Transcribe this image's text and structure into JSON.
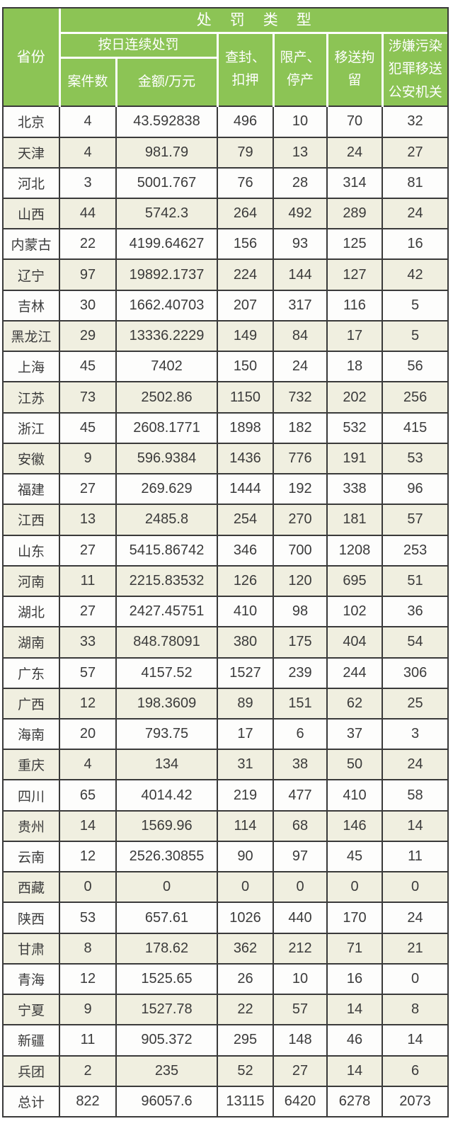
{
  "chart_data": {
    "type": "table",
    "title": "处罚类型",
    "header": {
      "province": "省份",
      "penalty_type": "处罚类型",
      "daily_penalty": "按日连续处罚",
      "case_count": "案件数",
      "amount": "金额/万元",
      "seizure": "查封、\n扣押",
      "limit_production": "限产、\n停产",
      "detention": "移送拘\n留",
      "criminal_transfer": "涉嫌污染\n犯罪移送\n公安机关"
    },
    "columns": [
      "省份",
      "按日连续处罚-案件数",
      "按日连续处罚-金额/万元",
      "查封、扣押",
      "限产、停产",
      "移送拘留",
      "涉嫌污染犯罪移送公安机关"
    ],
    "rows": [
      [
        "北京",
        "4",
        "43.592838",
        "496",
        "10",
        "70",
        "32"
      ],
      [
        "天津",
        "4",
        "981.79",
        "79",
        "13",
        "24",
        "27"
      ],
      [
        "河北",
        "3",
        "5001.767",
        "76",
        "28",
        "314",
        "81"
      ],
      [
        "山西",
        "44",
        "5742.3",
        "264",
        "492",
        "289",
        "24"
      ],
      [
        "内蒙古",
        "22",
        "4199.64627",
        "156",
        "93",
        "125",
        "16"
      ],
      [
        "辽宁",
        "97",
        "19892.1737",
        "224",
        "144",
        "127",
        "42"
      ],
      [
        "吉林",
        "30",
        "1662.40703",
        "207",
        "317",
        "116",
        "5"
      ],
      [
        "黑龙江",
        "29",
        "13336.2229",
        "149",
        "84",
        "17",
        "5"
      ],
      [
        "上海",
        "45",
        "7402",
        "150",
        "24",
        "18",
        "56"
      ],
      [
        "江苏",
        "73",
        "2502.86",
        "1150",
        "732",
        "202",
        "256"
      ],
      [
        "浙江",
        "45",
        "2608.1771",
        "1898",
        "182",
        "532",
        "415"
      ],
      [
        "安徽",
        "9",
        "596.9384",
        "1436",
        "776",
        "191",
        "53"
      ],
      [
        "福建",
        "27",
        "269.629",
        "1444",
        "192",
        "338",
        "96"
      ],
      [
        "江西",
        "13",
        "2485.8",
        "254",
        "270",
        "181",
        "57"
      ],
      [
        "山东",
        "27",
        "5415.86742",
        "346",
        "700",
        "1208",
        "253"
      ],
      [
        "河南",
        "11",
        "2215.83532",
        "126",
        "120",
        "695",
        "51"
      ],
      [
        "湖北",
        "27",
        "2427.45751",
        "410",
        "98",
        "102",
        "36"
      ],
      [
        "湖南",
        "33",
        "848.78091",
        "380",
        "175",
        "404",
        "54"
      ],
      [
        "广东",
        "57",
        "4157.52",
        "1527",
        "239",
        "244",
        "306"
      ],
      [
        "广西",
        "12",
        "198.3609",
        "89",
        "151",
        "62",
        "25"
      ],
      [
        "海南",
        "20",
        "793.75",
        "17",
        "6",
        "37",
        "3"
      ],
      [
        "重庆",
        "4",
        "134",
        "31",
        "38",
        "50",
        "24"
      ],
      [
        "四川",
        "65",
        "4014.42",
        "219",
        "477",
        "410",
        "58"
      ],
      [
        "贵州",
        "14",
        "1569.96",
        "114",
        "68",
        "146",
        "14"
      ],
      [
        "云南",
        "12",
        "2526.30855",
        "90",
        "97",
        "45",
        "11"
      ],
      [
        "西藏",
        "0",
        "0",
        "0",
        "0",
        "0",
        "0"
      ],
      [
        "陕西",
        "53",
        "657.61",
        "1026",
        "440",
        "170",
        "24"
      ],
      [
        "甘肃",
        "8",
        "178.62",
        "362",
        "212",
        "71",
        "21"
      ],
      [
        "青海",
        "12",
        "1525.65",
        "26",
        "10",
        "16",
        "0"
      ],
      [
        "宁夏",
        "9",
        "1527.78",
        "22",
        "57",
        "14",
        "8"
      ],
      [
        "新疆",
        "11",
        "905.372",
        "295",
        "148",
        "46",
        "14"
      ],
      [
        "兵团",
        "2",
        "235",
        "52",
        "27",
        "14",
        "6"
      ],
      [
        "总计",
        "822",
        "96057.6",
        "13115",
        "6420",
        "6278",
        "2073"
      ]
    ]
  },
  "colors": {
    "header_green": "#8cc455",
    "row_alt_beige": "#f0efe0",
    "row_white": "#fdfdfc",
    "grid_border": "#3a3a3a",
    "header_text": "#ffffff",
    "cell_text": "#3b3b3b"
  }
}
